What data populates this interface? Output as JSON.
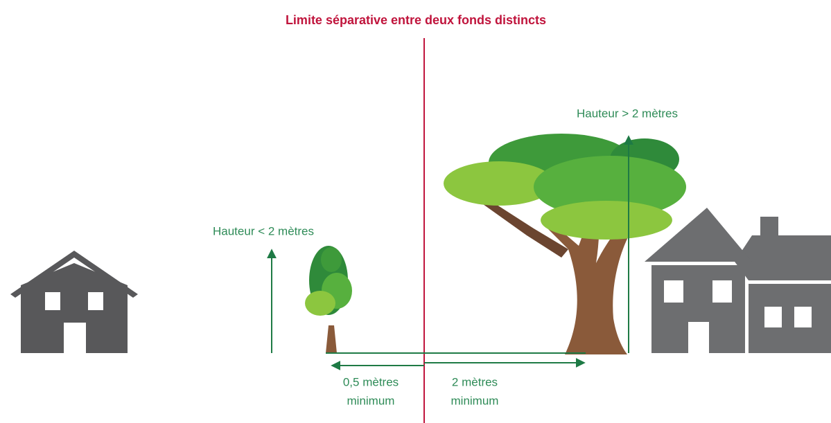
{
  "title": "Limite séparative entre deux fonds distincts",
  "labels": {
    "tall_height": "Hauteur > 2 mètres",
    "short_height": "Hauteur < 2 mètres",
    "short_distance": [
      "0,5 mètres",
      "minimum"
    ],
    "tall_distance": [
      "2 mètres",
      "minimum"
    ]
  }
}
